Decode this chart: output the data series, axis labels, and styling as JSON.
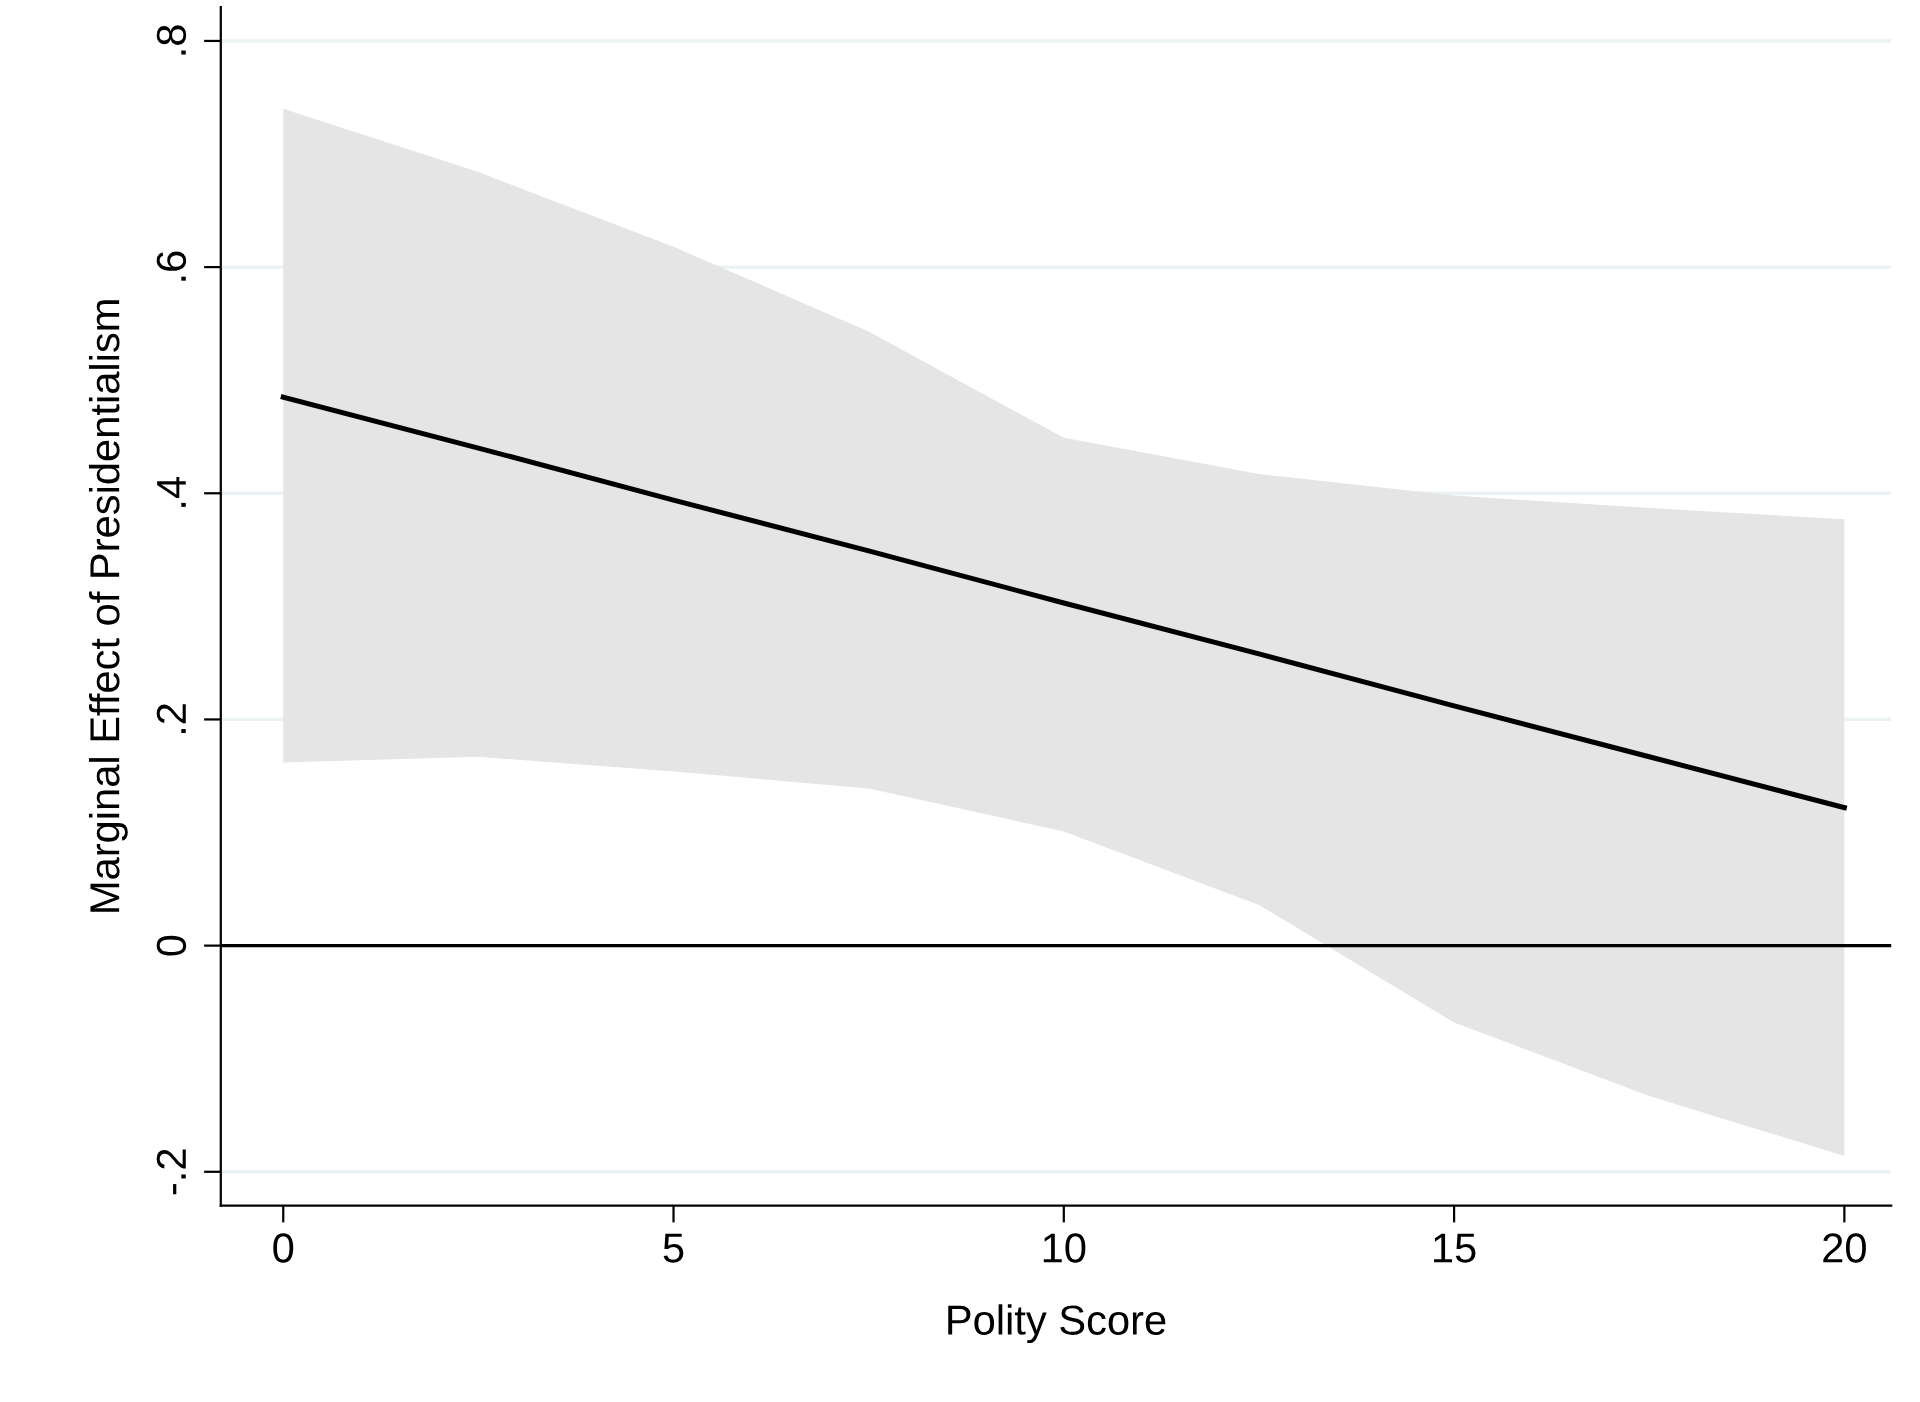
{
  "chart_data": {
    "type": "line",
    "xlabel": "Polity Score",
    "ylabel": "Marginal Effect of Presidentialism",
    "xlim": [
      -0.8,
      20.6
    ],
    "ylim": [
      -0.23,
      0.83
    ],
    "xticks": [
      0,
      5,
      10,
      15,
      20
    ],
    "yticks": [
      {
        "value": -0.2,
        "label": "-.2"
      },
      0,
      {
        "value": 0.2,
        "label": ".2"
      },
      {
        "value": 0.4,
        "label": ".4"
      },
      {
        "value": 0.6,
        "label": ".6"
      },
      {
        "value": 0.8,
        "label": ".8"
      }
    ],
    "grid": "y",
    "line_style": "solid",
    "marker": "none",
    "ref_lines": [
      {
        "axis": "y",
        "value": 0,
        "color": "#000000"
      }
    ],
    "series": [
      {
        "color": "#000000",
        "x": [
          0,
          2.5,
          5,
          7.5,
          10,
          12.5,
          15,
          17.5,
          20
        ],
        "values": [
          0.485,
          0.44,
          0.394,
          0.349,
          0.303,
          0.258,
          0.212,
          0.167,
          0.122
        ],
        "lower": [
          0.162,
          0.167,
          0.154,
          0.139,
          0.101,
          0.036,
          -0.068,
          -0.133,
          -0.186
        ],
        "upper": [
          0.74,
          0.684,
          0.618,
          0.543,
          0.449,
          0.417,
          0.398,
          0.387,
          0.377
        ]
      }
    ]
  }
}
